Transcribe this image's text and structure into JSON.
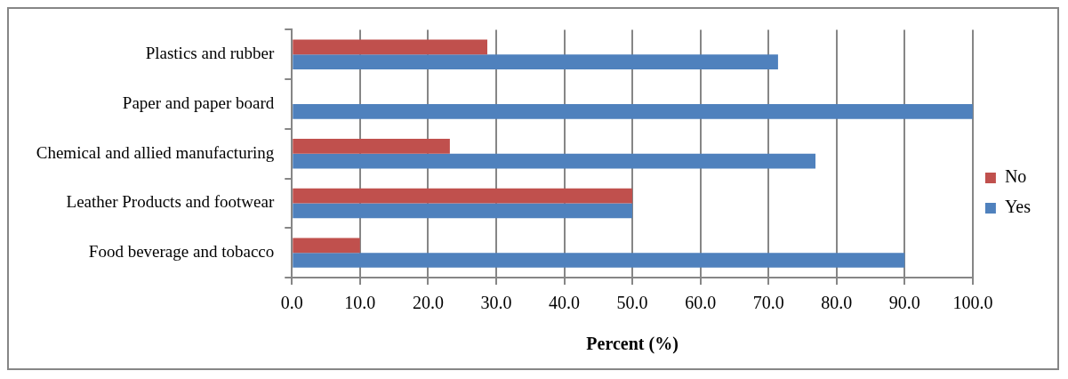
{
  "chart_data": {
    "type": "bar",
    "orientation": "horizontal",
    "xlabel": "Percent (%)",
    "categories": [
      "Plastics and rubber",
      "Paper and paper board",
      "Chemical and allied manufacturing",
      "Leather Products and footwear",
      "Food beverage and tobacco"
    ],
    "series": [
      {
        "name": "No",
        "color": "#c0504d",
        "values": [
          28.7,
          0,
          23.2,
          50,
          10
        ]
      },
      {
        "name": "Yes",
        "color": "#4f81bd",
        "values": [
          71.4,
          100,
          76.9,
          50,
          90
        ]
      }
    ],
    "xlim": [
      0,
      100
    ],
    "xticks": [
      {
        "value": 0,
        "label": "0.0"
      },
      {
        "value": 10,
        "label": "10.0"
      },
      {
        "value": 20,
        "label": "20.0"
      },
      {
        "value": 30,
        "label": "30.0"
      },
      {
        "value": 40,
        "label": "40.0"
      },
      {
        "value": 50,
        "label": "50.0"
      },
      {
        "value": 60,
        "label": "60.0"
      },
      {
        "value": 70,
        "label": "70.0"
      },
      {
        "value": 80,
        "label": "80.0"
      },
      {
        "value": 90,
        "label": "90.0"
      },
      {
        "value": 100,
        "label": "100.0"
      }
    ],
    "grid": "x",
    "legend": "right"
  }
}
